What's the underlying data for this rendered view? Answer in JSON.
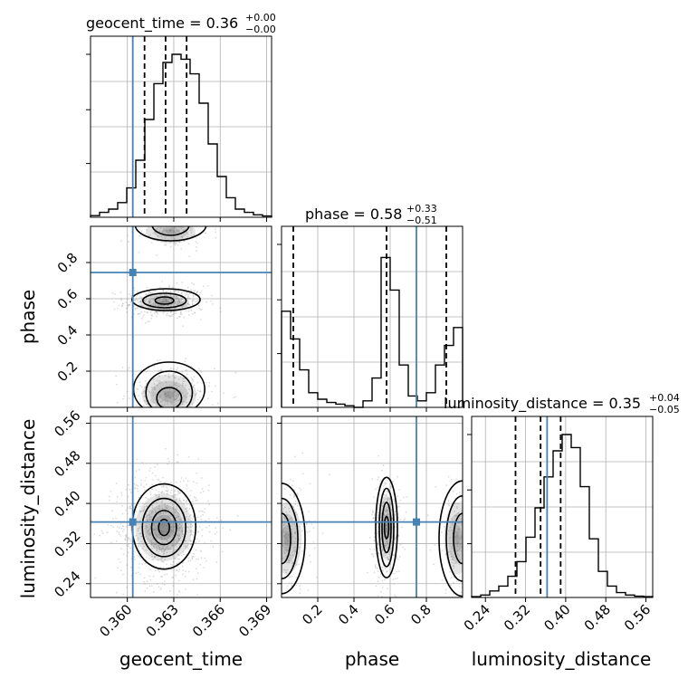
{
  "chart_data": {
    "type": "corner",
    "parameters": [
      "geocent_time",
      "phase",
      "luminosity_distance"
    ],
    "truths": {
      "geocent_time": 0.36035,
      "phase": 0.745,
      "luminosity_distance": 0.363
    },
    "quantile_lines": {
      "geocent_time": [
        0.36111,
        0.36247,
        0.36383
      ],
      "phase": [
        0.065,
        0.58,
        0.91
      ],
      "luminosity_distance": [
        0.3,
        0.35,
        0.39
      ]
    },
    "titles": {
      "geocent_time": {
        "name": "geocent_time",
        "median": "0.36",
        "plus": "+0.00",
        "minus": "−0.00"
      },
      "phase": {
        "name": "phase",
        "median": "0.58",
        "plus": "+0.33",
        "minus": "−0.51"
      },
      "luminosity_distance": {
        "name": "luminosity_distance",
        "median": "0.35",
        "plus": "+0.04",
        "minus": "−0.05"
      }
    },
    "axes": {
      "geocent_time": {
        "label": "geocent_time",
        "range": [
          0.35762,
          0.36932
        ],
        "ticks": [
          0.36,
          0.363,
          0.366,
          0.369
        ],
        "tick_labels": [
          "0.360",
          "0.363",
          "0.366",
          "0.369"
        ]
      },
      "phase": {
        "label": "phase",
        "range": [
          0.0,
          1.0
        ],
        "ticks": [
          0.2,
          0.4,
          0.6,
          0.8
        ],
        "tick_labels": [
          "0.2",
          "0.4",
          "0.6",
          "0.8"
        ]
      },
      "luminosity_distance": {
        "label": "luminosity_distance",
        "range": [
          0.2125,
          0.5735
        ],
        "ticks": [
          0.24,
          0.32,
          0.4,
          0.48,
          0.56
        ],
        "tick_labels": [
          "0.24",
          "0.32",
          "0.40",
          "0.48",
          "0.56"
        ]
      }
    },
    "histograms": {
      "geocent_time": [
        0.01,
        0.03,
        0.05,
        0.09,
        0.18,
        0.35,
        0.6,
        0.82,
        0.95,
        1.0,
        0.97,
        0.88,
        0.7,
        0.45,
        0.25,
        0.12,
        0.05,
        0.03,
        0.015,
        0.008
      ],
      "phase": [
        0.59,
        0.42,
        0.23,
        0.09,
        0.05,
        0.03,
        0.02,
        0.01,
        0.0,
        0.04,
        0.18,
        0.92,
        0.72,
        0.26,
        0.07,
        0.04,
        0.09,
        0.26,
        0.38,
        0.49
      ],
      "luminosity_distance": [
        0.005,
        0.015,
        0.04,
        0.07,
        0.13,
        0.22,
        0.37,
        0.55,
        0.74,
        0.9,
        1.0,
        0.92,
        0.68,
        0.36,
        0.16,
        0.07,
        0.03,
        0.015,
        0.008,
        0.005
      ]
    },
    "grid": true,
    "colors": {
      "truth": "#4682b4",
      "contour": "#000000",
      "density": "#555555",
      "points": "#9a9a9a"
    }
  }
}
